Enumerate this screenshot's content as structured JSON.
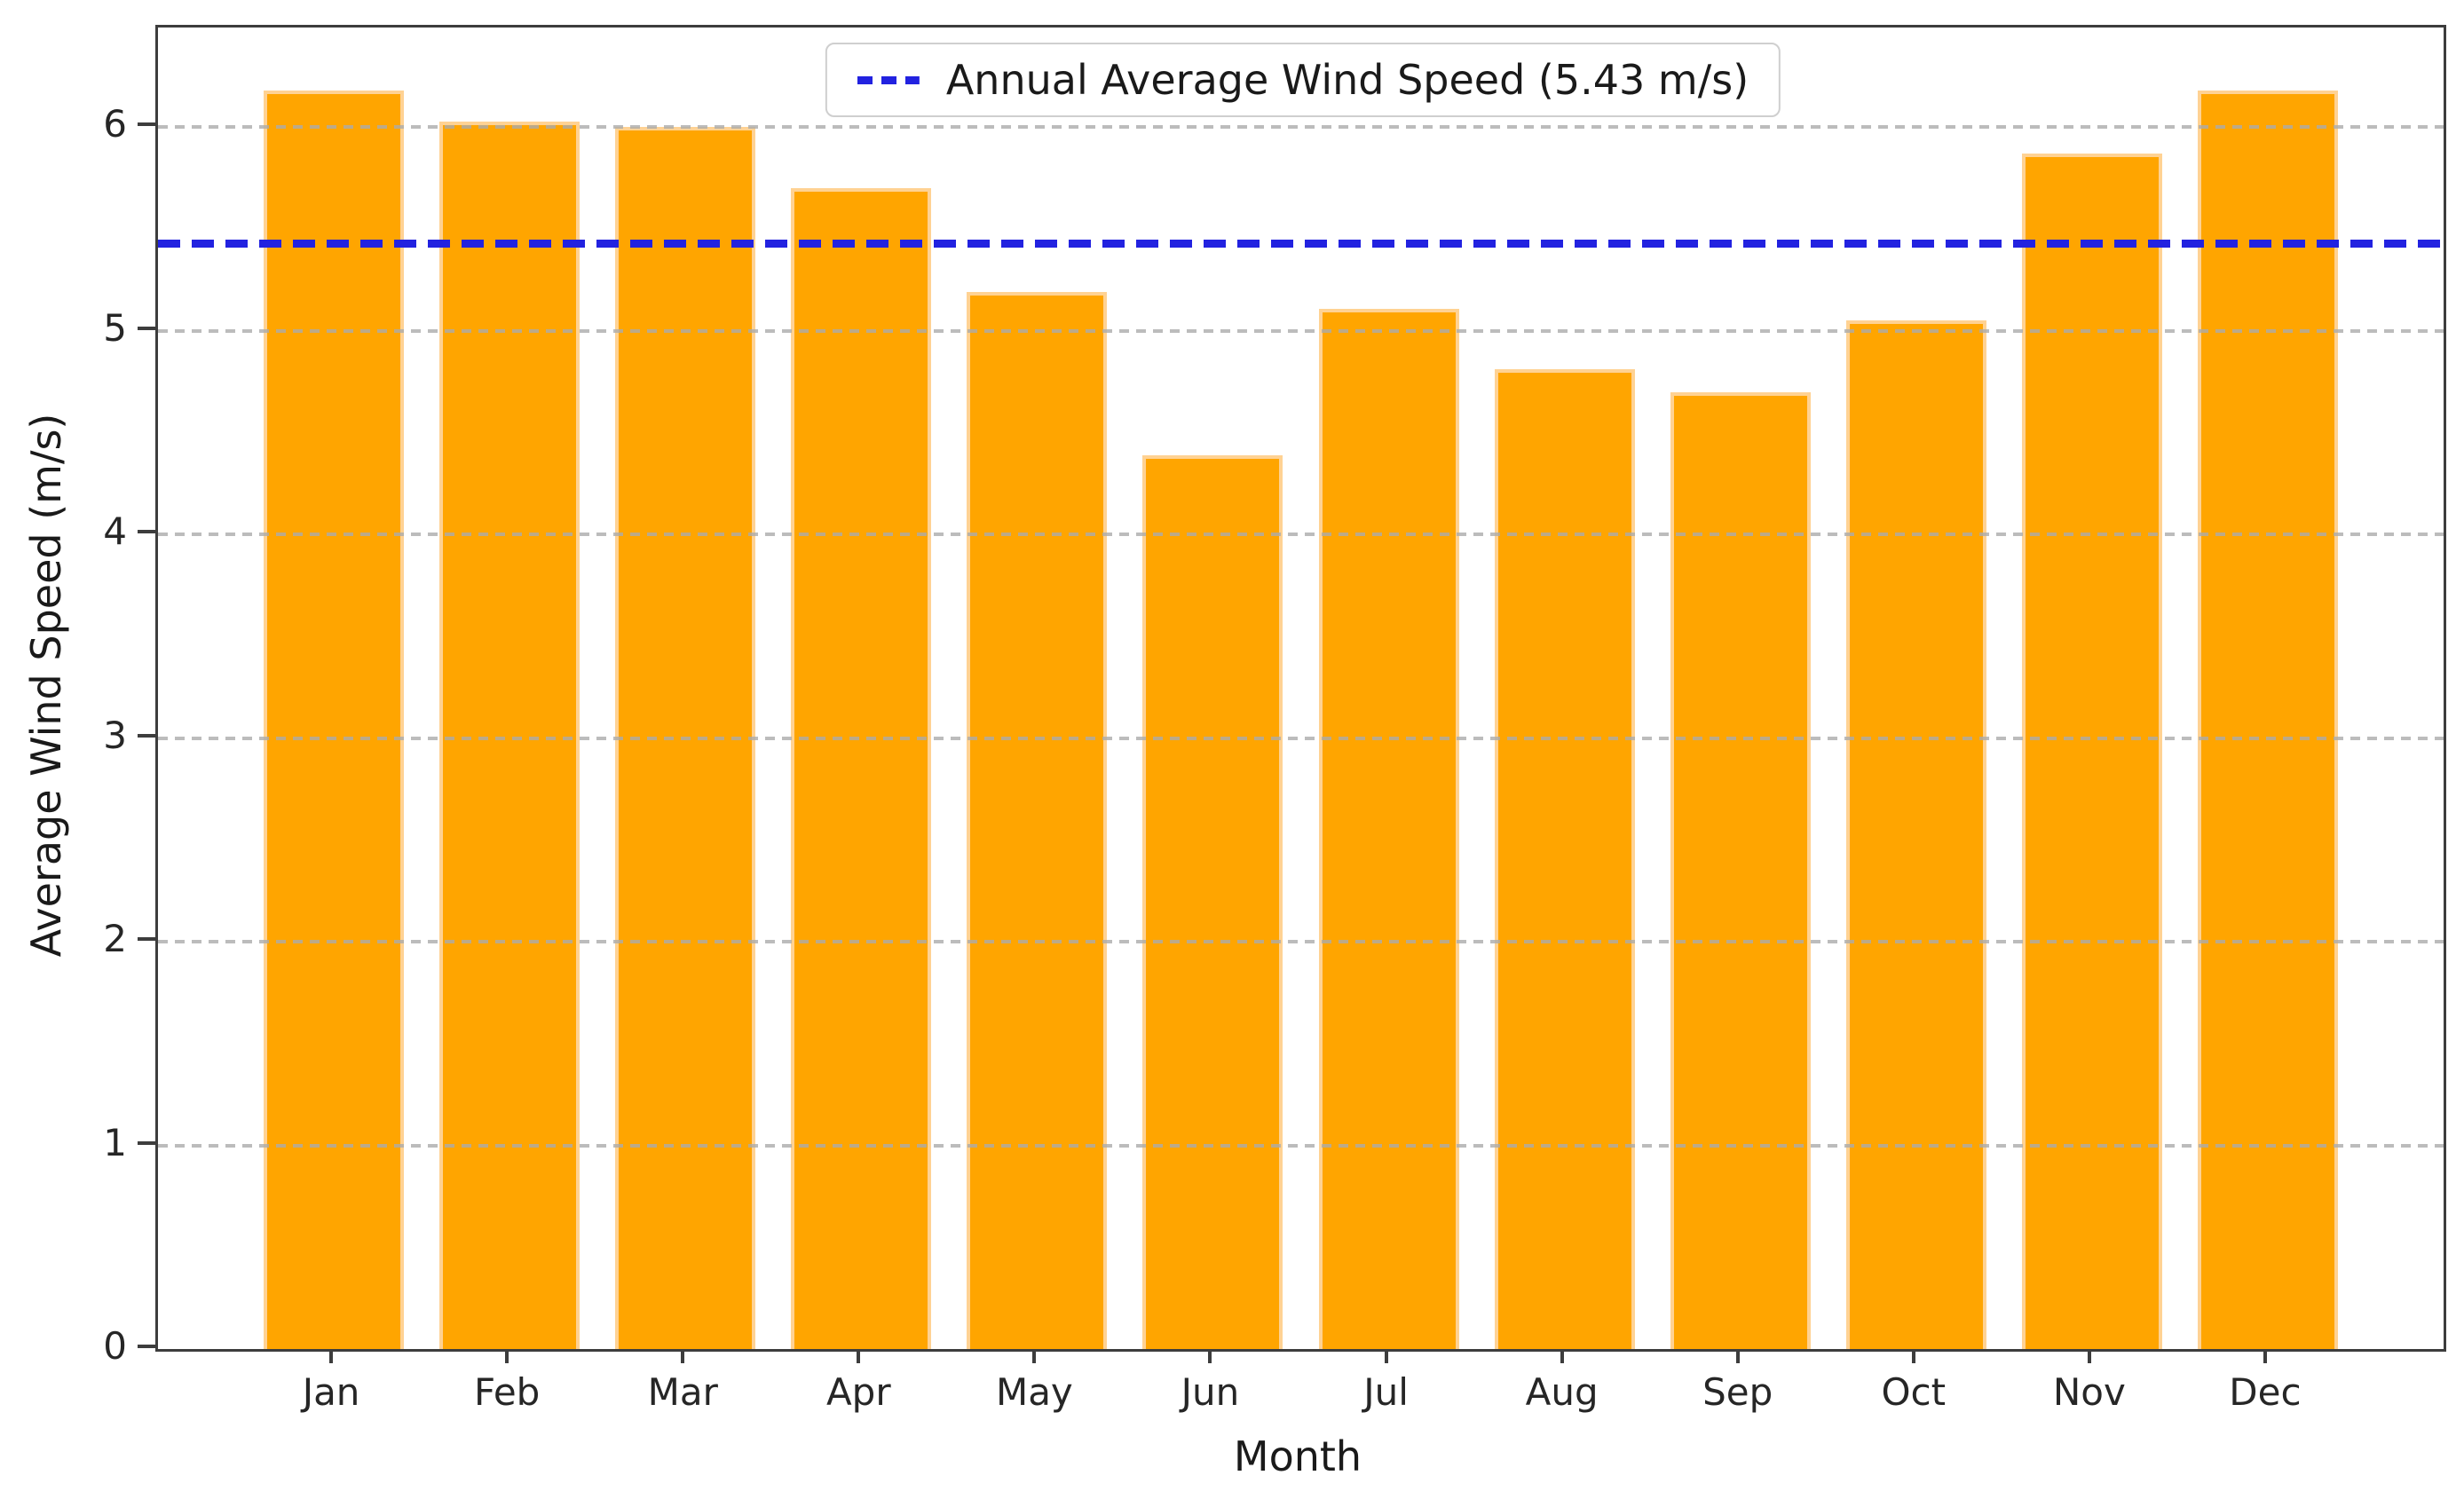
{
  "figure": {
    "background": "#ffffff"
  },
  "chart_data": {
    "type": "bar",
    "title": "",
    "xlabel": "Month",
    "ylabel": "Average Wind Speed (m/s)",
    "categories": [
      "Jan",
      "Feb",
      "Mar",
      "Apr",
      "May",
      "Jun",
      "Jul",
      "Aug",
      "Sep",
      "Oct",
      "Nov",
      "Dec"
    ],
    "values": [
      6.18,
      6.03,
      6.0,
      5.7,
      5.19,
      4.39,
      5.11,
      4.81,
      4.7,
      5.05,
      5.87,
      6.18
    ],
    "bar_color": "#FFA500",
    "bar_edge_color": "#FFD293",
    "ylim": [
      0,
      6.49
    ],
    "yticks": [
      0,
      1,
      2,
      3,
      4,
      5,
      6
    ],
    "grid": "y-axis dashed gray, drawn over bars",
    "gridline_color": "#ababab",
    "spine_color": "#3d3d3d",
    "legend_position": "upper center",
    "annotation_line": {
      "value": 5.43,
      "color": "#2222E0",
      "style": "dashed",
      "label": "Annual Average Wind Speed (5.43 m/s)"
    },
    "legend": {
      "entries": [
        {
          "label": "Annual Average Wind Speed (5.43 m/s)",
          "color": "#2222E0",
          "line_style": "dashed"
        }
      ]
    }
  }
}
